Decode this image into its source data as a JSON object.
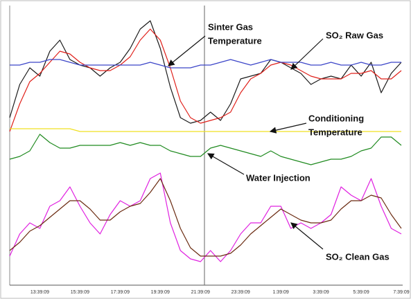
{
  "chart_data": {
    "type": "line",
    "categories": [
      null,
      null,
      null,
      "13:39:09",
      null,
      null,
      null,
      "15:39:09",
      null,
      null,
      null,
      "17:39:09",
      null,
      null,
      null,
      "19:39:09",
      null,
      null,
      null,
      "21:39:09",
      null,
      null,
      null,
      "23:39:09",
      null,
      null,
      null,
      "1:39:09",
      null,
      null,
      null,
      "3:39:09",
      null,
      null,
      null,
      "5:39:09",
      null,
      null,
      null,
      "7:39:09"
    ],
    "ylim": [
      0,
      100
    ],
    "series": [
      {
        "color": "#1a1a1a",
        "values": [
          60,
          72,
          78,
          75,
          84,
          88,
          81,
          79,
          78,
          75,
          78,
          80,
          85,
          92,
          95,
          85,
          71,
          60,
          58,
          59,
          62,
          59,
          65,
          74,
          75,
          76,
          81,
          80,
          78,
          76,
          72,
          74,
          75,
          74,
          79,
          75,
          80,
          69,
          76,
          80
        ]
      },
      {
        "color": "#e0201a",
        "values": [
          55,
          65,
          73,
          76,
          80,
          84,
          83,
          80,
          78,
          77,
          77,
          79,
          82,
          88,
          92,
          88,
          78,
          66,
          60,
          58,
          59,
          60,
          62,
          69,
          74,
          76,
          79,
          80,
          79,
          77,
          75,
          74,
          74,
          74,
          76,
          76,
          77,
          74,
          74,
          77
        ]
      },
      {
        "color": "#3a44c8",
        "values": [
          79,
          79,
          80,
          80,
          81,
          81,
          80,
          79,
          79,
          79,
          79,
          79,
          79,
          79,
          80,
          79,
          78,
          78,
          78,
          79,
          79,
          80,
          81,
          80,
          79,
          80,
          81,
          80,
          80,
          80,
          79,
          79,
          80,
          79,
          79,
          80,
          79,
          79,
          80,
          80
        ]
      },
      {
        "color": "#f0e020",
        "values": [
          56,
          56,
          56,
          56,
          56,
          56,
          56,
          55,
          55,
          55,
          55,
          55,
          55,
          55,
          55,
          55,
          55,
          55,
          55,
          55,
          55,
          55,
          55,
          55,
          55,
          55,
          55,
          55,
          55,
          55,
          55,
          55,
          55,
          55,
          55,
          55,
          55,
          55,
          55,
          55
        ]
      },
      {
        "color": "#1f8a1f",
        "values": [
          45,
          46,
          48,
          54,
          51,
          49,
          49,
          50,
          50,
          50,
          50,
          51,
          50,
          51,
          50,
          50,
          48,
          47,
          46,
          46,
          49,
          50,
          49,
          48,
          47,
          46,
          48,
          46,
          45,
          44,
          43,
          44,
          45,
          45,
          46,
          48,
          49,
          53,
          53,
          50
        ]
      },
      {
        "color": "#e020e0",
        "values": [
          10,
          18,
          22,
          20,
          28,
          30,
          35,
          28,
          22,
          18,
          25,
          30,
          28,
          30,
          38,
          40,
          22,
          12,
          9,
          8,
          12,
          8,
          12,
          18,
          22,
          22,
          28,
          28,
          20,
          22,
          20,
          22,
          25,
          35,
          32,
          30,
          38,
          28,
          20,
          18
        ]
      },
      {
        "color": "#6a2a10",
        "values": [
          12,
          15,
          19,
          21,
          24,
          27,
          30,
          30,
          27,
          23,
          23,
          26,
          28,
          29,
          33,
          38,
          30,
          20,
          13,
          10,
          10,
          10,
          11,
          14,
          18,
          21,
          24,
          27,
          25,
          23,
          22,
          22,
          23,
          27,
          30,
          30,
          32,
          31,
          25,
          20
        ]
      }
    ],
    "annotations": [
      {
        "lines": [
          "Sinter Gas",
          "Temperature"
        ]
      },
      {
        "lines": [
          "SO₂ Raw Gas"
        ]
      },
      {
        "lines": [
          "Conditioning",
          "Temperature"
        ]
      },
      {
        "lines": [
          "Water Injection"
        ]
      },
      {
        "lines": [
          "SO₂ Clean Gas"
        ]
      }
    ]
  }
}
